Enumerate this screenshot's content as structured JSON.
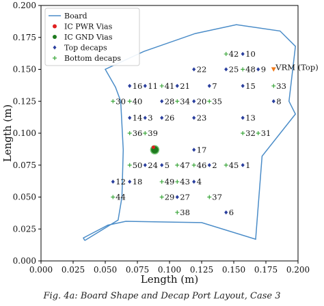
{
  "chart_data": {
    "type": "scatter",
    "title": "",
    "xlabel": "Length (m)",
    "ylabel": "Length (m)",
    "xlim": [
      0.0,
      0.2
    ],
    "ylim": [
      0.0,
      0.2
    ],
    "xticks": [
      "0.000",
      "0.025",
      "0.050",
      "0.075",
      "0.100",
      "0.125",
      "0.150",
      "0.175",
      "0.200"
    ],
    "yticks": [
      "0.000",
      "0.025",
      "0.050",
      "0.075",
      "0.100",
      "0.125",
      "0.150",
      "0.175",
      "0.200"
    ],
    "grid": false,
    "legend_position": "top-left",
    "legend": [
      {
        "label": "Board",
        "kind": "line",
        "color": "#4a8cc8"
      },
      {
        "label": "IC PWR Vias",
        "kind": "dot",
        "color": "#e02020"
      },
      {
        "label": "IC GND Vias",
        "kind": "dot",
        "color": "#1e7a1e"
      },
      {
        "label": "Top decaps",
        "kind": "diamond",
        "color": "#2a3f9e"
      },
      {
        "label": "Bottom decaps",
        "kind": "plus",
        "color": "#3aa63a"
      }
    ],
    "board_outline": [
      [
        0.034,
        0.016
      ],
      [
        0.06,
        0.032
      ],
      [
        0.063,
        0.05
      ],
      [
        0.064,
        0.087
      ],
      [
        0.062,
        0.125
      ],
      [
        0.058,
        0.136
      ],
      [
        0.05,
        0.15
      ],
      [
        0.08,
        0.164
      ],
      [
        0.12,
        0.178
      ],
      [
        0.152,
        0.185
      ],
      [
        0.186,
        0.18
      ],
      [
        0.198,
        0.168
      ],
      [
        0.193,
        0.125
      ],
      [
        0.198,
        0.115
      ],
      [
        0.172,
        0.082
      ],
      [
        0.167,
        0.017
      ],
      [
        0.125,
        0.03
      ],
      [
        0.066,
        0.031
      ],
      [
        0.052,
        0.028
      ],
      [
        0.033,
        0.018
      ],
      [
        0.034,
        0.016
      ]
    ],
    "ic_gnd_vias": [
      [
        0.0885,
        0.087
      ]
    ],
    "ic_pwr_vias": [
      [
        0.0875,
        0.089
      ]
    ],
    "vrm": {
      "label": "VRM (Top)",
      "x": 0.181,
      "y": 0.15,
      "color": "#f07a1a"
    },
    "top_decaps": [
      {
        "label": "1",
        "x": 0.157,
        "y": 0.075
      },
      {
        "label": "2",
        "x": 0.131,
        "y": 0.075
      },
      {
        "label": "4",
        "x": 0.119,
        "y": 0.062
      },
      {
        "label": "5",
        "x": 0.094,
        "y": 0.075
      },
      {
        "label": "6",
        "x": 0.144,
        "y": 0.038
      },
      {
        "label": "7",
        "x": 0.131,
        "y": 0.137
      },
      {
        "label": "8",
        "x": 0.181,
        "y": 0.125
      },
      {
        "label": "9",
        "x": 0.169,
        "y": 0.15
      },
      {
        "label": "10",
        "x": 0.157,
        "y": 0.162
      },
      {
        "label": "11",
        "x": 0.081,
        "y": 0.137
      },
      {
        "label": "12",
        "x": 0.056,
        "y": 0.062
      },
      {
        "label": "13",
        "x": 0.157,
        "y": 0.112
      },
      {
        "label": "14",
        "x": 0.069,
        "y": 0.112
      },
      {
        "label": "15",
        "x": 0.157,
        "y": 0.137
      },
      {
        "label": "16",
        "x": 0.069,
        "y": 0.137
      },
      {
        "label": "17",
        "x": 0.119,
        "y": 0.087
      },
      {
        "label": "18",
        "x": 0.069,
        "y": 0.062
      },
      {
        "label": "20",
        "x": 0.119,
        "y": 0.125
      },
      {
        "label": "21",
        "x": 0.106,
        "y": 0.137
      },
      {
        "label": "22",
        "x": 0.119,
        "y": 0.15
      },
      {
        "label": "23",
        "x": 0.119,
        "y": 0.112
      },
      {
        "label": "24",
        "x": 0.081,
        "y": 0.075
      },
      {
        "label": "25",
        "x": 0.144,
        "y": 0.15
      },
      {
        "label": "26",
        "x": 0.094,
        "y": 0.112
      },
      {
        "label": "27",
        "x": 0.106,
        "y": 0.05
      },
      {
        "label": "28",
        "x": 0.094,
        "y": 0.125
      },
      {
        "label": "3",
        "x": 0.081,
        "y": 0.112
      }
    ],
    "bottom_decaps": [
      {
        "label": "29",
        "x": 0.094,
        "y": 0.05
      },
      {
        "label": "30",
        "x": 0.056,
        "y": 0.125
      },
      {
        "label": "31",
        "x": 0.169,
        "y": 0.1
      },
      {
        "label": "32",
        "x": 0.157,
        "y": 0.1
      },
      {
        "label": "33",
        "x": 0.181,
        "y": 0.137
      },
      {
        "label": "34",
        "x": 0.106,
        "y": 0.125
      },
      {
        "label": "35",
        "x": 0.131,
        "y": 0.125
      },
      {
        "label": "36",
        "x": 0.069,
        "y": 0.1
      },
      {
        "label": "37",
        "x": 0.131,
        "y": 0.05
      },
      {
        "label": "38",
        "x": 0.106,
        "y": 0.038
      },
      {
        "label": "39",
        "x": 0.081,
        "y": 0.1
      },
      {
        "label": "40",
        "x": 0.069,
        "y": 0.125
      },
      {
        "label": "41",
        "x": 0.094,
        "y": 0.137
      },
      {
        "label": "42",
        "x": 0.144,
        "y": 0.162
      },
      {
        "label": "43",
        "x": 0.106,
        "y": 0.062
      },
      {
        "label": "44",
        "x": 0.056,
        "y": 0.05
      },
      {
        "label": "45",
        "x": 0.144,
        "y": 0.075
      },
      {
        "label": "46",
        "x": 0.119,
        "y": 0.075
      },
      {
        "label": "47",
        "x": 0.106,
        "y": 0.075
      },
      {
        "label": "48",
        "x": 0.157,
        "y": 0.15
      },
      {
        "label": "49",
        "x": 0.094,
        "y": 0.062
      },
      {
        "label": "50",
        "x": 0.069,
        "y": 0.075
      }
    ]
  },
  "caption": "Fig. 4a: Board Shape and Decap Port Layout, Case 3"
}
